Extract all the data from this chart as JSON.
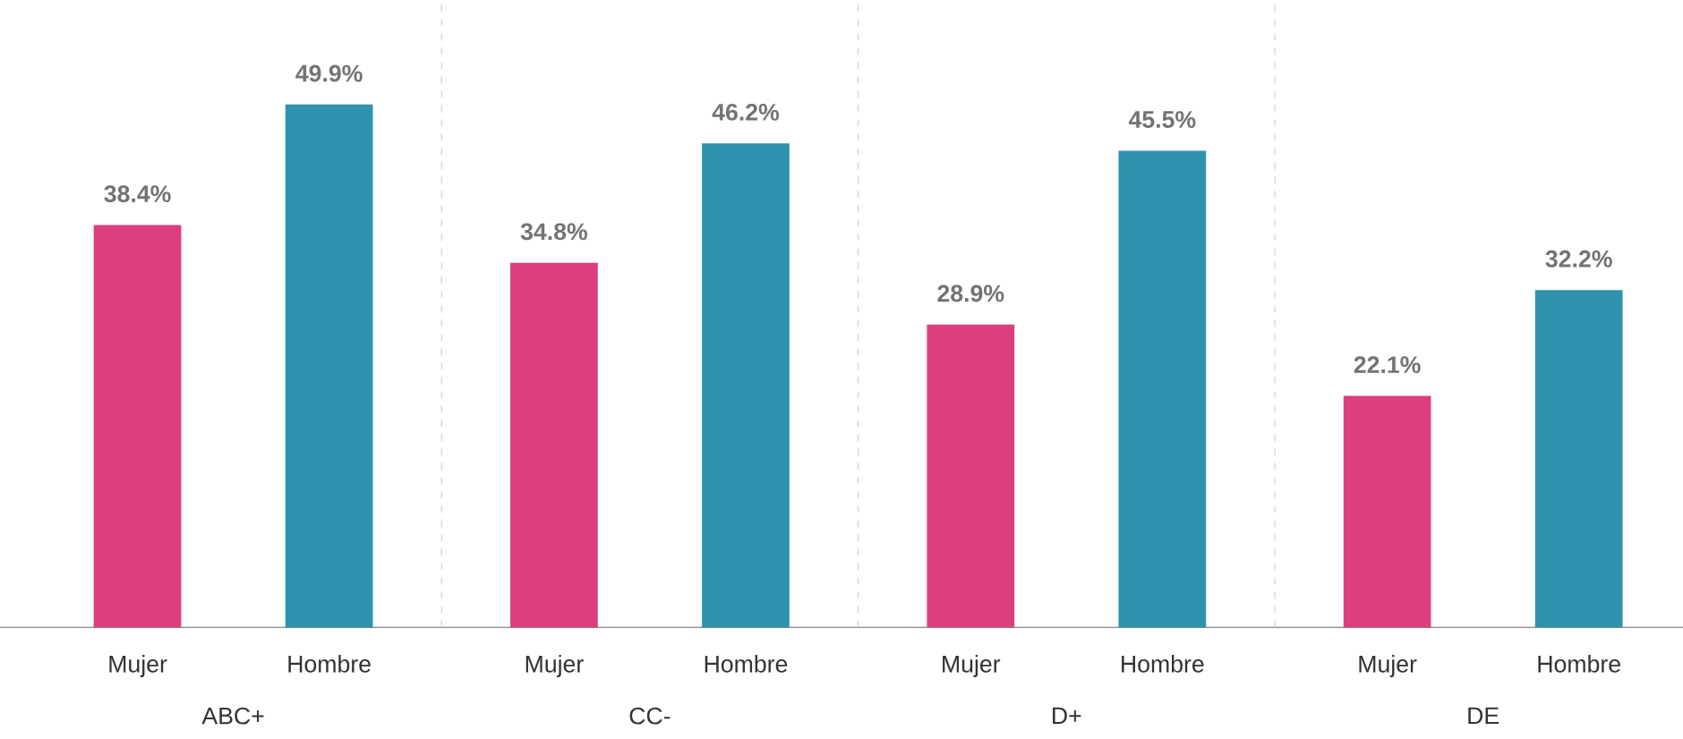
{
  "chart_data": {
    "type": "bar",
    "categories": [
      "ABC+",
      "CC-",
      "D+",
      "DE"
    ],
    "series": [
      {
        "name": "Mujer",
        "color": "#dc3f7e",
        "values": [
          38.4,
          34.8,
          28.9,
          22.1
        ],
        "value_labels": [
          "38.4%",
          "34.8%",
          "28.9%",
          "22.1%"
        ]
      },
      {
        "name": "Hombre",
        "color": "#2f93ad",
        "values": [
          49.9,
          46.2,
          45.5,
          32.2
        ],
        "value_labels": [
          "49.9%",
          "46.2%",
          "45.5%",
          "32.2%"
        ]
      }
    ]
  }
}
